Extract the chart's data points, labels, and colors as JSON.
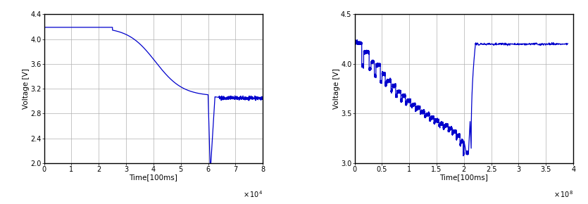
{
  "chart1": {
    "xlabel": "Time[100ms]",
    "ylabel": "Voltage [V]",
    "xlim": [
      0,
      8
    ],
    "ylim": [
      2.0,
      4.4
    ],
    "xticks": [
      0,
      1,
      2,
      3,
      4,
      5,
      6,
      7,
      8
    ],
    "yticks": [
      2.0,
      2.4,
      2.8,
      3.2,
      3.6,
      4.0,
      4.4
    ],
    "line_color": "#0000cc"
  },
  "chart2": {
    "xlabel": "Time[100ms]",
    "ylabel": "Voltage [V]",
    "xlim": [
      0,
      4
    ],
    "ylim": [
      3.0,
      4.5
    ],
    "xticks": [
      0,
      0.5,
      1.0,
      1.5,
      2.0,
      2.5,
      3.0,
      3.5,
      4.0
    ],
    "yticks": [
      3.0,
      3.5,
      4.0,
      4.5
    ],
    "line_color": "#0000cc"
  },
  "background_color": "#ffffff",
  "grid_color": "#b0b0b0",
  "fig_bg": "#ffffff"
}
